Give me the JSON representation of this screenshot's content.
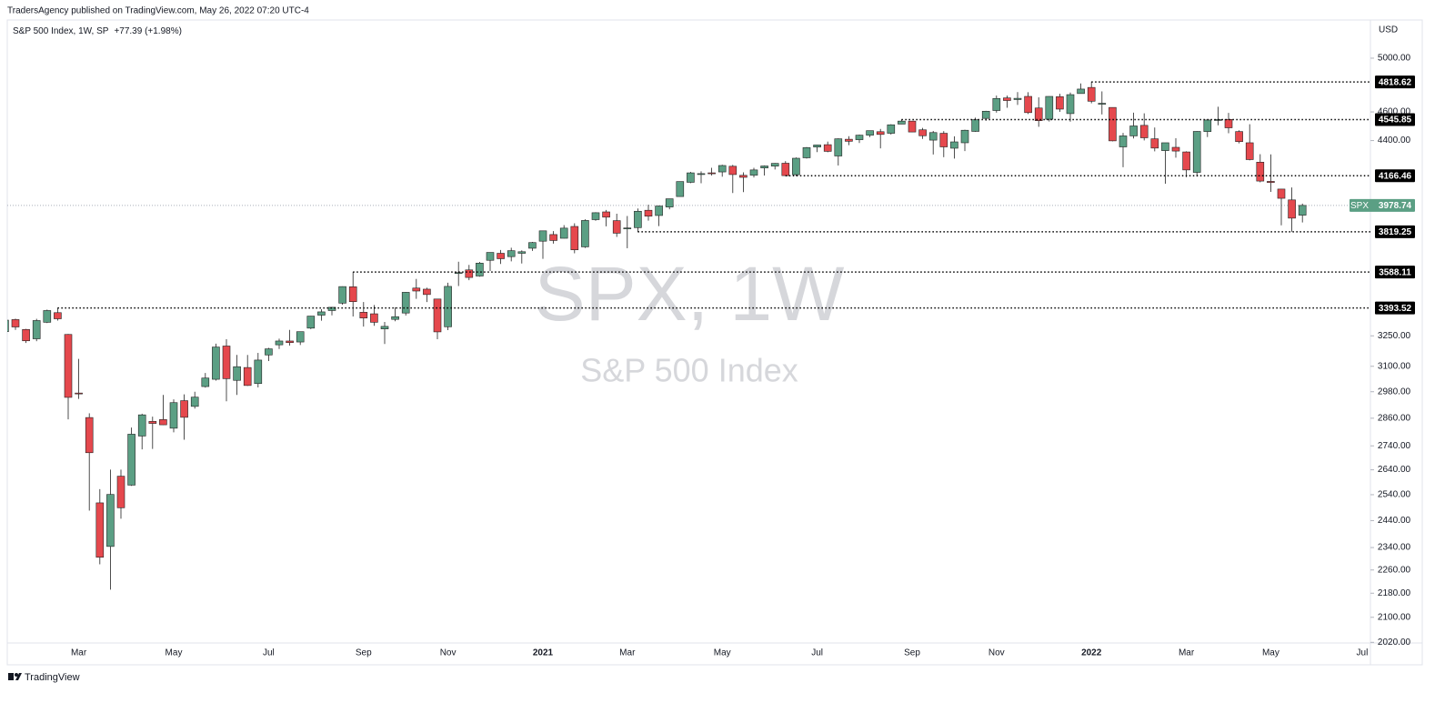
{
  "chart_data": {
    "type": "candlestick",
    "header": "TradersAgency published on TradingView.com, May 26, 2022 07:20 UTC-4",
    "legend": "S&P 500 Index, 1W, SP",
    "change": "+77.39 (+1.98%)",
    "currency": "USD",
    "watermark": "SPX, 1W",
    "watermark_name": "S&P 500 Index",
    "symbol": "SPX",
    "footer": "TradingView",
    "log_scale": true,
    "up_color": "#5b9f84",
    "down_color": "#e5484d",
    "ylim": [
      2018,
      5305
    ],
    "yticks": [
      {
        "value": 5000,
        "label": "5000.00"
      },
      {
        "value": 4600,
        "label": "4600.00"
      },
      {
        "value": 4400,
        "label": "4400.00"
      },
      {
        "value": 3250,
        "label": "3250.00"
      },
      {
        "value": 3100,
        "label": "3100.00"
      },
      {
        "value": 2980,
        "label": "2980.00"
      },
      {
        "value": 2860,
        "label": "2860.00"
      },
      {
        "value": 2740,
        "label": "2740.00"
      },
      {
        "value": 2640,
        "label": "2640.00"
      },
      {
        "value": 2540,
        "label": "2540.00"
      },
      {
        "value": 2440,
        "label": "2440.00"
      },
      {
        "value": 2340,
        "label": "2340.00"
      },
      {
        "value": 2260,
        "label": "2260.00"
      },
      {
        "value": 2180,
        "label": "2180.00"
      },
      {
        "value": 2100,
        "label": "2100.00"
      },
      {
        "value": 2020,
        "label": "2020.00"
      }
    ],
    "xticks": [
      {
        "value": "2020-03",
        "label": "Mar"
      },
      {
        "value": "2020-05",
        "label": "May"
      },
      {
        "value": "2020-07",
        "label": "Jul"
      },
      {
        "value": "2020-09",
        "label": "Sep"
      },
      {
        "value": "2020-11",
        "label": "Nov"
      },
      {
        "value": "2021-01",
        "label": "2021"
      },
      {
        "value": "2021-03",
        "label": "Mar"
      },
      {
        "value": "2021-05",
        "label": "May"
      },
      {
        "value": "2021-07",
        "label": "Jul"
      },
      {
        "value": "2021-09",
        "label": "Sep"
      },
      {
        "value": "2021-11",
        "label": "Nov"
      },
      {
        "value": "2022-01",
        "label": "2022"
      },
      {
        "value": "2022-03",
        "label": "Mar"
      },
      {
        "value": "2022-05",
        "label": "May"
      },
      {
        "value": "2022-07",
        "label": "Jul"
      }
    ],
    "levels": [
      4818.62,
      4545.85,
      4166.46,
      3819.25,
      3588.11,
      3393.52
    ],
    "x": [
      "2020-01",
      "2020-01",
      "2020-01",
      "2020-02",
      "2020-02",
      "2020-02",
      "2020-02",
      "2020-03",
      "2020-03",
      "2020-03",
      "2020-03",
      "2020-03",
      "2020-04",
      "2020-04",
      "2020-04",
      "2020-04",
      "2020-05",
      "2020-05",
      "2020-05",
      "2020-05",
      "2020-06",
      "2020-06",
      "2020-06",
      "2020-06",
      "2020-06",
      "2020-07",
      "2020-07",
      "2020-07",
      "2020-07",
      "2020-08",
      "2020-08",
      "2020-08",
      "2020-08",
      "2020-08",
      "2020-09",
      "2020-09",
      "2020-09",
      "2020-09",
      "2020-10",
      "2020-10",
      "2020-10",
      "2020-10",
      "2020-11",
      "2020-11",
      "2020-11",
      "2020-11",
      "2020-11",
      "2020-12",
      "2020-12",
      "2020-12",
      "2020-12",
      "2021-01",
      "2021-01",
      "2021-01",
      "2021-01",
      "2021-02",
      "2021-02",
      "2021-02",
      "2021-02",
      "2021-03",
      "2021-03",
      "2021-03",
      "2021-03",
      "2021-03",
      "2021-04",
      "2021-04",
      "2021-04",
      "2021-04",
      "2021-05",
      "2021-05",
      "2021-05",
      "2021-05",
      "2021-05",
      "2021-06",
      "2021-06",
      "2021-06",
      "2021-06",
      "2021-07",
      "2021-07",
      "2021-07",
      "2021-07",
      "2021-08",
      "2021-08",
      "2021-08",
      "2021-08",
      "2021-08",
      "2021-09",
      "2021-09",
      "2021-09",
      "2021-09",
      "2021-10",
      "2021-10",
      "2021-10",
      "2021-10",
      "2021-11",
      "2021-11",
      "2021-11",
      "2021-11",
      "2021-11",
      "2021-12",
      "2021-12",
      "2021-12",
      "2021-12",
      "2022-01",
      "2022-01",
      "2022-01",
      "2022-01",
      "2022-01",
      "2022-02",
      "2022-02",
      "2022-02",
      "2022-02",
      "2022-03",
      "2022-03",
      "2022-03",
      "2022-03",
      "2022-04",
      "2022-04",
      "2022-04",
      "2022-04",
      "2022-05",
      "2022-05",
      "2022-05",
      "2022-05"
    ],
    "open": [
      3271,
      3333,
      3282,
      3235,
      3319,
      3369,
      3257,
      2974,
      2863,
      2508,
      2344,
      2614,
      2578,
      2782,
      2846,
      2854,
      2816,
      2939,
      2913,
      3004,
      3038,
      3199,
      3033,
      3094,
      3018,
      3155,
      3205,
      3224,
      3219,
      3289,
      3356,
      3380,
      3419,
      3507,
      3371,
      3363,
      3285,
      3334,
      3367,
      3500,
      3494,
      3441,
      3296,
      3583,
      3600,
      3566,
      3654,
      3694,
      3675,
      3694,
      3723,
      3764,
      3803,
      3781,
      3851,
      3731,
      3892,
      3939,
      3886,
      3842,
      3844,
      3949,
      3917,
      3969,
      4034,
      4124,
      4179,
      4185,
      4191,
      4228,
      4169,
      4170,
      4217,
      4229,
      4248,
      4173,
      4284,
      4356,
      4372,
      4296,
      4409,
      4406,
      4437,
      4461,
      4450,
      4514,
      4535,
      4474,
      4403,
      4450,
      4348,
      4385,
      4463,
      4554,
      4610,
      4701,
      4689,
      4712,
      4628,
      4548,
      4710,
      4588,
      4733,
      4778,
      4655,
      4632,
      4357,
      4432,
      4505,
      4412,
      4332,
      4354,
      4323,
      4188,
      4462,
      4541,
      4547,
      4462,
      4385,
      4255,
      4130,
      4081,
      4013,
      3919
    ],
    "high": [
      3330,
      3338,
      3285,
      3337,
      3385,
      3393.52,
      3259,
      3136,
      2882,
      2562,
      2641,
      2641,
      2819,
      2880,
      2867,
      2965,
      2945,
      2968,
      2980,
      3068,
      3211,
      3233,
      3155,
      3155,
      3165,
      3190,
      3236,
      3280,
      3272,
      3352,
      3387,
      3399,
      3509,
      3588.11,
      3425,
      3409,
      3321,
      3397,
      3479,
      3550,
      3502,
      3441,
      3529,
      3646,
      3628,
      3645,
      3699,
      3713,
      3726,
      3711,
      3760,
      3826,
      3823,
      3859,
      3870,
      3894,
      3937,
      3951,
      3928,
      3914,
      3960,
      3983,
      3978,
      4020,
      4129,
      4191,
      4195,
      4218,
      4238,
      4237,
      4188,
      4218,
      4234,
      4249,
      4262,
      4286,
      4356,
      4372,
      4393,
      4415,
      4430,
      4441,
      4469,
      4480,
      4513,
      4545.85,
      4536,
      4487,
      4466,
      4465,
      4429,
      4475,
      4559,
      4608,
      4718,
      4718,
      4744,
      4743,
      4705,
      4713,
      4731,
      4740,
      4808,
      4818.62,
      4749,
      4632,
      4453,
      4595,
      4590,
      4490,
      4385,
      4416,
      4327,
      4465,
      4546,
      4637,
      4593,
      4471,
      4513,
      4308,
      4307,
      4082,
      4091,
      3990
    ],
    "low": [
      3264,
      3280,
      3214,
      3223,
      3315,
      3328,
      2855,
      2947,
      2478,
      2280,
      2192,
      2447,
      2575,
      2725,
      2727,
      2830,
      2798,
      2766,
      2903,
      2999,
      3032,
      2936,
      2965,
      3007,
      3000,
      3125,
      3184,
      3201,
      3204,
      3284,
      3327,
      3355,
      3411,
      3349,
      3297,
      3301,
      3209,
      3324,
      3354,
      3442,
      3425,
      3233,
      3279,
      3511,
      3543,
      3562,
      3594,
      3633,
      3648,
      3636,
      3708,
      3662,
      3750,
      3780,
      3694,
      3725,
      3885,
      3852,
      3789,
      3723,
      3819.25,
      3886,
      3853,
      3955,
      4034,
      4119,
      4118,
      4168,
      4160,
      4056,
      4062,
      4155,
      4168,
      4207,
      4166.46,
      4165,
      4279,
      4322,
      4321,
      4233,
      4369,
      4383,
      4424,
      4347,
      4441,
      4514,
      4457,
      4411,
      4306,
      4288,
      4279,
      4329,
      4460,
      4537,
      4595,
      4630,
      4650,
      4585,
      4495,
      4532,
      4600,
      4531,
      4733,
      4662,
      4582,
      4395,
      4222,
      4414,
      4401,
      4327,
      4115,
      4285,
      4157,
      4161,
      4424,
      4506,
      4450,
      4381,
      4267,
      4124,
      4063,
      3858,
      3819.25,
      3875
    ],
    "close": [
      3330,
      3295,
      3225,
      3328,
      3380,
      3337,
      2954,
      2972,
      2711,
      2305,
      2541,
      2489,
      2790,
      2875,
      2837,
      2831,
      2930,
      2864,
      2955,
      3044,
      3194,
      3041,
      3098,
      3009,
      3130,
      3185,
      3224,
      3216,
      3271,
      3351,
      3373,
      3397,
      3508,
      3427,
      3341,
      3319,
      3298,
      3348,
      3477,
      3484,
      3465,
      3270,
      3509,
      3585,
      3558,
      3638,
      3699,
      3663,
      3709,
      3703,
      3756,
      3825,
      3768,
      3841,
      3714,
      3887,
      3934,
      3907,
      3811,
      3842,
      3943,
      3913,
      3975,
      4020,
      4129,
      4185,
      4180,
      4181,
      4233,
      4174,
      4156,
      4204,
      4230,
      4247,
      4167,
      4281,
      4352,
      4370,
      4327,
      4412,
      4395,
      4437,
      4468,
      4442,
      4509,
      4535,
      4459,
      4433,
      4455,
      4357,
      4391,
      4471,
      4545,
      4605,
      4697,
      4682,
      4698,
      4595,
      4538,
      4712,
      4620,
      4725,
      4766,
      4677,
      4662,
      4398,
      4432,
      4501,
      4419,
      4349,
      4385,
      4329,
      4204,
      4463,
      4543,
      4546,
      4488,
      4393,
      4272,
      4132,
      4123,
      4023,
      3901,
      3978.74
    ]
  }
}
